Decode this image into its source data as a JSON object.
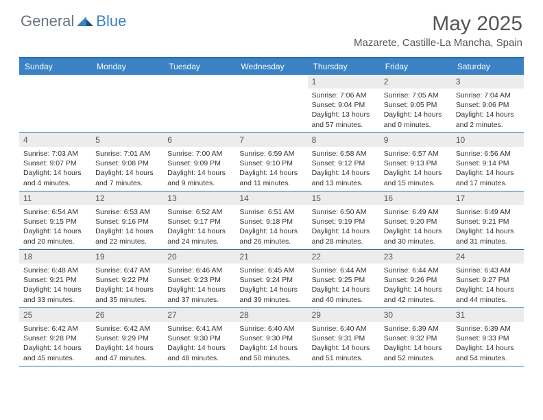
{
  "logo": {
    "general": "General",
    "blue": "Blue"
  },
  "month_title": "May 2025",
  "location": "Mazarete, Castille-La Mancha, Spain",
  "colors": {
    "header_bg": "#3b82c4",
    "border": "#2f6ea8",
    "daynum_bg": "#ececec",
    "logo_gray": "#6b7280",
    "logo_blue": "#3b82c4",
    "title_color": "#555555"
  },
  "day_headers": [
    "Sunday",
    "Monday",
    "Tuesday",
    "Wednesday",
    "Thursday",
    "Friday",
    "Saturday"
  ],
  "weeks": [
    [
      {
        "n": "",
        "sr": "",
        "ss": "",
        "dl": ""
      },
      {
        "n": "",
        "sr": "",
        "ss": "",
        "dl": ""
      },
      {
        "n": "",
        "sr": "",
        "ss": "",
        "dl": ""
      },
      {
        "n": "",
        "sr": "",
        "ss": "",
        "dl": ""
      },
      {
        "n": "1",
        "sr": "Sunrise: 7:06 AM",
        "ss": "Sunset: 9:04 PM",
        "dl": "Daylight: 13 hours and 57 minutes."
      },
      {
        "n": "2",
        "sr": "Sunrise: 7:05 AM",
        "ss": "Sunset: 9:05 PM",
        "dl": "Daylight: 14 hours and 0 minutes."
      },
      {
        "n": "3",
        "sr": "Sunrise: 7:04 AM",
        "ss": "Sunset: 9:06 PM",
        "dl": "Daylight: 14 hours and 2 minutes."
      }
    ],
    [
      {
        "n": "4",
        "sr": "Sunrise: 7:03 AM",
        "ss": "Sunset: 9:07 PM",
        "dl": "Daylight: 14 hours and 4 minutes."
      },
      {
        "n": "5",
        "sr": "Sunrise: 7:01 AM",
        "ss": "Sunset: 9:08 PM",
        "dl": "Daylight: 14 hours and 7 minutes."
      },
      {
        "n": "6",
        "sr": "Sunrise: 7:00 AM",
        "ss": "Sunset: 9:09 PM",
        "dl": "Daylight: 14 hours and 9 minutes."
      },
      {
        "n": "7",
        "sr": "Sunrise: 6:59 AM",
        "ss": "Sunset: 9:10 PM",
        "dl": "Daylight: 14 hours and 11 minutes."
      },
      {
        "n": "8",
        "sr": "Sunrise: 6:58 AM",
        "ss": "Sunset: 9:12 PM",
        "dl": "Daylight: 14 hours and 13 minutes."
      },
      {
        "n": "9",
        "sr": "Sunrise: 6:57 AM",
        "ss": "Sunset: 9:13 PM",
        "dl": "Daylight: 14 hours and 15 minutes."
      },
      {
        "n": "10",
        "sr": "Sunrise: 6:56 AM",
        "ss": "Sunset: 9:14 PM",
        "dl": "Daylight: 14 hours and 17 minutes."
      }
    ],
    [
      {
        "n": "11",
        "sr": "Sunrise: 6:54 AM",
        "ss": "Sunset: 9:15 PM",
        "dl": "Daylight: 14 hours and 20 minutes."
      },
      {
        "n": "12",
        "sr": "Sunrise: 6:53 AM",
        "ss": "Sunset: 9:16 PM",
        "dl": "Daylight: 14 hours and 22 minutes."
      },
      {
        "n": "13",
        "sr": "Sunrise: 6:52 AM",
        "ss": "Sunset: 9:17 PM",
        "dl": "Daylight: 14 hours and 24 minutes."
      },
      {
        "n": "14",
        "sr": "Sunrise: 6:51 AM",
        "ss": "Sunset: 9:18 PM",
        "dl": "Daylight: 14 hours and 26 minutes."
      },
      {
        "n": "15",
        "sr": "Sunrise: 6:50 AM",
        "ss": "Sunset: 9:19 PM",
        "dl": "Daylight: 14 hours and 28 minutes."
      },
      {
        "n": "16",
        "sr": "Sunrise: 6:49 AM",
        "ss": "Sunset: 9:20 PM",
        "dl": "Daylight: 14 hours and 30 minutes."
      },
      {
        "n": "17",
        "sr": "Sunrise: 6:49 AM",
        "ss": "Sunset: 9:21 PM",
        "dl": "Daylight: 14 hours and 31 minutes."
      }
    ],
    [
      {
        "n": "18",
        "sr": "Sunrise: 6:48 AM",
        "ss": "Sunset: 9:21 PM",
        "dl": "Daylight: 14 hours and 33 minutes."
      },
      {
        "n": "19",
        "sr": "Sunrise: 6:47 AM",
        "ss": "Sunset: 9:22 PM",
        "dl": "Daylight: 14 hours and 35 minutes."
      },
      {
        "n": "20",
        "sr": "Sunrise: 6:46 AM",
        "ss": "Sunset: 9:23 PM",
        "dl": "Daylight: 14 hours and 37 minutes."
      },
      {
        "n": "21",
        "sr": "Sunrise: 6:45 AM",
        "ss": "Sunset: 9:24 PM",
        "dl": "Daylight: 14 hours and 39 minutes."
      },
      {
        "n": "22",
        "sr": "Sunrise: 6:44 AM",
        "ss": "Sunset: 9:25 PM",
        "dl": "Daylight: 14 hours and 40 minutes."
      },
      {
        "n": "23",
        "sr": "Sunrise: 6:44 AM",
        "ss": "Sunset: 9:26 PM",
        "dl": "Daylight: 14 hours and 42 minutes."
      },
      {
        "n": "24",
        "sr": "Sunrise: 6:43 AM",
        "ss": "Sunset: 9:27 PM",
        "dl": "Daylight: 14 hours and 44 minutes."
      }
    ],
    [
      {
        "n": "25",
        "sr": "Sunrise: 6:42 AM",
        "ss": "Sunset: 9:28 PM",
        "dl": "Daylight: 14 hours and 45 minutes."
      },
      {
        "n": "26",
        "sr": "Sunrise: 6:42 AM",
        "ss": "Sunset: 9:29 PM",
        "dl": "Daylight: 14 hours and 47 minutes."
      },
      {
        "n": "27",
        "sr": "Sunrise: 6:41 AM",
        "ss": "Sunset: 9:30 PM",
        "dl": "Daylight: 14 hours and 48 minutes."
      },
      {
        "n": "28",
        "sr": "Sunrise: 6:40 AM",
        "ss": "Sunset: 9:30 PM",
        "dl": "Daylight: 14 hours and 50 minutes."
      },
      {
        "n": "29",
        "sr": "Sunrise: 6:40 AM",
        "ss": "Sunset: 9:31 PM",
        "dl": "Daylight: 14 hours and 51 minutes."
      },
      {
        "n": "30",
        "sr": "Sunrise: 6:39 AM",
        "ss": "Sunset: 9:32 PM",
        "dl": "Daylight: 14 hours and 52 minutes."
      },
      {
        "n": "31",
        "sr": "Sunrise: 6:39 AM",
        "ss": "Sunset: 9:33 PM",
        "dl": "Daylight: 14 hours and 54 minutes."
      }
    ]
  ]
}
